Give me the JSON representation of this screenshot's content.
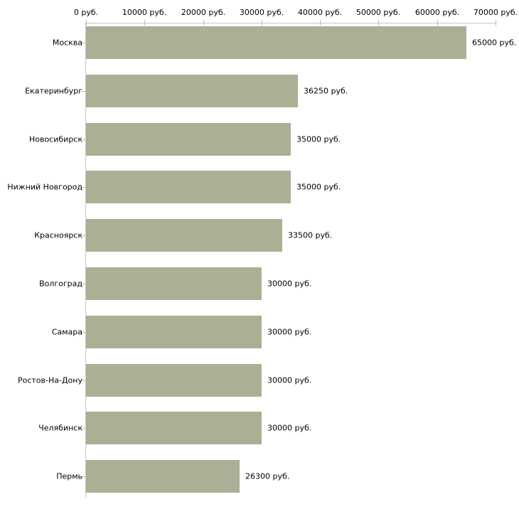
{
  "chart_data": {
    "type": "bar",
    "orientation": "horizontal",
    "title": "",
    "xlabel": "",
    "ylabel": "",
    "unit": "руб.",
    "xlim": [
      0,
      70000
    ],
    "x_ticks": [
      0,
      10000,
      20000,
      30000,
      40000,
      50000,
      60000,
      70000
    ],
    "x_tick_labels": [
      "0 руб.",
      "10000 руб.",
      "20000 руб.",
      "30000 руб.",
      "40000 руб.",
      "50000 руб.",
      "60000 руб.",
      "70000 руб."
    ],
    "categories": [
      "Москва",
      "Екатеринбург",
      "Новосибирск",
      "Нижний Новгород",
      "Красноярск",
      "Волгоград",
      "Самара",
      "Ростов-На-Дону",
      "Челябинск",
      "Пермь"
    ],
    "values": [
      65000,
      36250,
      35000,
      35000,
      33500,
      30000,
      30000,
      30000,
      30000,
      26300
    ],
    "value_labels": [
      "65000 руб.",
      "36250 руб.",
      "35000 руб.",
      "35000 руб.",
      "33500 руб.",
      "30000 руб.",
      "30000 руб.",
      "30000 руб.",
      "30000 руб.",
      "26300 руб."
    ],
    "grid": false,
    "legend": false,
    "axis_position": "top",
    "colors": {
      "bar": "#aab096",
      "axis_line": "#c6c6c6",
      "tick_mark": "#bcbf9f",
      "text": "#000000",
      "background": "#ffffff"
    }
  }
}
